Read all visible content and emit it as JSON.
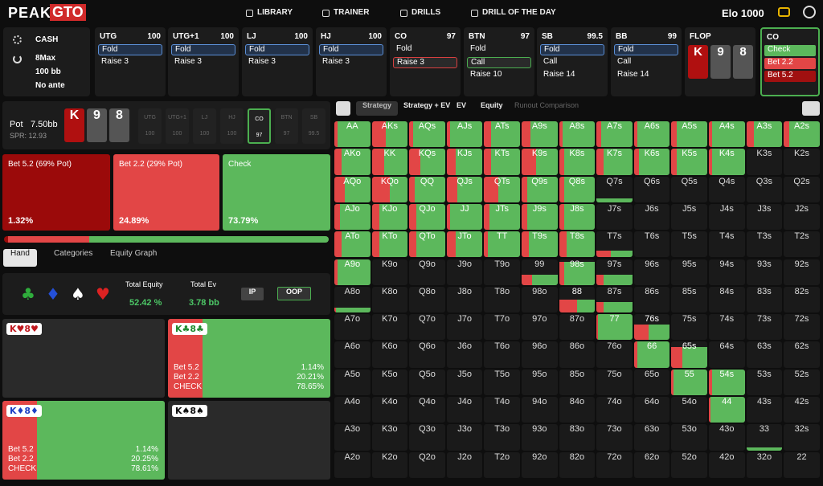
{
  "header": {
    "logo_peak": "PEAK",
    "logo_gto": "GTO",
    "nav": [
      "LIBRARY",
      "TRAINER",
      "DRILLS",
      "DRILL OF THE DAY"
    ],
    "elo": "Elo 1000"
  },
  "settings": [
    "CASH",
    "8Max",
    "100 bb",
    "No ante"
  ],
  "positions": [
    {
      "name": "UTG",
      "stack": "100",
      "actions": [
        "Fold",
        "Raise 3"
      ]
    },
    {
      "name": "UTG+1",
      "stack": "100",
      "actions": [
        "Fold",
        "Raise 3"
      ]
    },
    {
      "name": "LJ",
      "stack": "100",
      "actions": [
        "Fold",
        "Raise 3"
      ]
    },
    {
      "name": "HJ",
      "stack": "100",
      "actions": [
        "Fold",
        "Raise 3"
      ]
    },
    {
      "name": "CO",
      "stack": "97",
      "actions": [
        "Fold",
        "Raise 3"
      ]
    },
    {
      "name": "BTN",
      "stack": "97",
      "actions": [
        "Fold",
        "Call",
        "Raise 10"
      ]
    },
    {
      "name": "SB",
      "stack": "99.5",
      "actions": [
        "Fold",
        "Call",
        "Raise 14"
      ]
    },
    {
      "name": "BB",
      "stack": "99",
      "actions": [
        "Fold",
        "Call",
        "Raise 14"
      ]
    }
  ],
  "flop": {
    "label": "FLOP",
    "cards": [
      "K",
      "9",
      "8"
    ]
  },
  "current": {
    "name": "CO",
    "actions": [
      "Check",
      "Bet 2.2",
      "Bet 5.2"
    ]
  },
  "board": {
    "pot": "Pot",
    "pot_value": "7.50bb",
    "spr": "SPR: 12.93",
    "cards": [
      "K",
      "9",
      "8"
    ],
    "mini_positions": [
      {
        "name": "UTG",
        "stack": "100"
      },
      {
        "name": "UTG+1",
        "stack": "100"
      },
      {
        "name": "LJ",
        "stack": "100"
      },
      {
        "name": "HJ",
        "stack": "100"
      },
      {
        "name": "CO",
        "stack": "97"
      },
      {
        "name": "BTN",
        "stack": "97"
      },
      {
        "name": "SB",
        "stack": "99.5"
      }
    ]
  },
  "actions": [
    {
      "label": "Bet 5.2 (69% Pot)",
      "freq": 1.32,
      "freq_label": "1.32%",
      "color": "#9b0a0a"
    },
    {
      "label": "Bet 2.2 (29% Pot)",
      "freq": 24.89,
      "freq_label": "24.89%",
      "color": "#e24646"
    },
    {
      "label": "Check",
      "freq": 73.79,
      "freq_label": "73.79%",
      "color": "#5cb85c"
    }
  ],
  "tabs": [
    "Hand",
    "Categories",
    "Equity Graph"
  ],
  "equity": {
    "suit_filters": [
      "♣",
      "♦",
      "♠",
      "♥"
    ],
    "total_equity_label": "Total Equity",
    "total_equity": "52.42 %",
    "total_ev_label": "Total Ev",
    "total_ev": "3.78 bb",
    "ip": "IP",
    "oop": "OOP"
  },
  "combos": [
    {
      "hand": "K♥8♥",
      "color": "#c0181e"
    },
    {
      "hand": "K♣8♣",
      "color": "#1f8a2e",
      "lines": [
        {
          "action": "Bet 5.2",
          "freq": 1.14,
          "label": "1.14%"
        },
        {
          "action": "Bet 2.2",
          "freq": 20.21,
          "label": "20.21%"
        },
        {
          "action": "CHECK",
          "freq": 78.65,
          "label": "78.65%"
        }
      ]
    },
    {
      "hand": "K♦8♦",
      "color": "#1d3fc4",
      "lines": [
        {
          "action": "Bet 5.2",
          "freq": 1.14,
          "label": "1.14%"
        },
        {
          "action": "Bet 2.2",
          "freq": 20.25,
          "label": "20.25%"
        },
        {
          "action": "CHECK",
          "freq": 78.61,
          "label": "78.61%"
        }
      ]
    },
    {
      "hand": "K♠8♠",
      "color": "#111111"
    }
  ],
  "grid_toolbar": [
    "Strategy",
    "Strategy + EV",
    "EV",
    "Equity",
    "Runout Comparison"
  ],
  "grid": {
    "hands": [
      [
        "AA",
        "AKs",
        "AQs",
        "AJs",
        "ATs",
        "A9s",
        "A8s",
        "A7s",
        "A6s",
        "A5s",
        "A4s",
        "A3s",
        "A2s"
      ],
      [
        "AKo",
        "KK",
        "KQs",
        "KJs",
        "KTs",
        "K9s",
        "K8s",
        "K7s",
        "K6s",
        "K5s",
        "K4s",
        "K3s",
        "K2s"
      ],
      [
        "AQo",
        "KQo",
        "QQ",
        "QJs",
        "QTs",
        "Q9s",
        "Q8s",
        "Q7s",
        "Q6s",
        "Q5s",
        "Q4s",
        "Q3s",
        "Q2s"
      ],
      [
        "AJo",
        "KJo",
        "QJo",
        "JJ",
        "JTs",
        "J9s",
        "J8s",
        "J7s",
        "J6s",
        "J5s",
        "J4s",
        "J3s",
        "J2s"
      ],
      [
        "ATo",
        "KTo",
        "QTo",
        "JTo",
        "TT",
        "T9s",
        "T8s",
        "T7s",
        "T6s",
        "T5s",
        "T4s",
        "T3s",
        "T2s"
      ],
      [
        "A9o",
        "K9o",
        "Q9o",
        "J9o",
        "T9o",
        "99",
        "98s",
        "97s",
        "96s",
        "95s",
        "94s",
        "93s",
        "92s"
      ],
      [
        "A8o",
        "K8o",
        "Q8o",
        "J8o",
        "T8o",
        "98o",
        "88",
        "87s",
        "86s",
        "85s",
        "84s",
        "83s",
        "82s"
      ],
      [
        "A7o",
        "K7o",
        "Q7o",
        "J7o",
        "T7o",
        "97o",
        "87o",
        "77",
        "76s",
        "75s",
        "74s",
        "73s",
        "72s"
      ],
      [
        "A6o",
        "K6o",
        "Q6o",
        "J6o",
        "T6o",
        "96o",
        "86o",
        "76o",
        "66",
        "65s",
        "64s",
        "63s",
        "62s"
      ],
      [
        "A5o",
        "K5o",
        "Q5o",
        "J5o",
        "T5o",
        "95o",
        "85o",
        "75o",
        "65o",
        "55",
        "54s",
        "53s",
        "52s"
      ],
      [
        "A4o",
        "K4o",
        "Q4o",
        "J4o",
        "T4o",
        "94o",
        "84o",
        "74o",
        "64o",
        "54o",
        "44",
        "43s",
        "42s"
      ],
      [
        "A3o",
        "K3o",
        "Q3o",
        "J3o",
        "T3o",
        "93o",
        "83o",
        "73o",
        "63o",
        "53o",
        "43o",
        "33",
        "32s"
      ],
      [
        "A2o",
        "K2o",
        "Q2o",
        "J2o",
        "T2o",
        "92o",
        "82o",
        "72o",
        "62o",
        "52o",
        "42o",
        "32o",
        "22"
      ]
    ],
    "weight": [
      [
        100,
        100,
        100,
        100,
        100,
        100,
        100,
        100,
        100,
        100,
        100,
        100,
        100
      ],
      [
        100,
        100,
        100,
        100,
        100,
        100,
        100,
        100,
        100,
        100,
        100,
        0,
        0
      ],
      [
        100,
        100,
        100,
        100,
        100,
        100,
        100,
        15,
        0,
        0,
        0,
        0,
        0
      ],
      [
        100,
        100,
        100,
        100,
        100,
        100,
        100,
        0,
        0,
        0,
        0,
        0,
        0
      ],
      [
        100,
        100,
        100,
        100,
        100,
        100,
        100,
        25,
        0,
        0,
        0,
        0,
        0
      ],
      [
        100,
        0,
        0,
        0,
        0,
        40,
        90,
        40,
        0,
        0,
        0,
        0,
        0
      ],
      [
        20,
        0,
        0,
        0,
        0,
        0,
        50,
        40,
        0,
        0,
        0,
        0,
        0
      ],
      [
        0,
        0,
        0,
        0,
        0,
        0,
        0,
        100,
        60,
        0,
        0,
        0,
        0
      ],
      [
        0,
        0,
        0,
        0,
        0,
        0,
        0,
        0,
        100,
        80,
        0,
        0,
        0
      ],
      [
        0,
        0,
        0,
        0,
        0,
        0,
        0,
        0,
        0,
        100,
        100,
        0,
        0
      ],
      [
        0,
        0,
        0,
        0,
        0,
        0,
        0,
        0,
        0,
        0,
        100,
        0,
        0
      ],
      [
        0,
        0,
        0,
        0,
        0,
        0,
        0,
        0,
        0,
        0,
        0,
        10,
        0
      ],
      [
        0,
        0,
        0,
        0,
        0,
        0,
        0,
        0,
        0,
        0,
        0,
        0,
        0
      ]
    ],
    "bet": [
      [
        10,
        40,
        10,
        10,
        20,
        25,
        10,
        12,
        10,
        15,
        10,
        20,
        15
      ],
      [
        20,
        35,
        30,
        25,
        20,
        40,
        15,
        20,
        15,
        15,
        10,
        null,
        null
      ],
      [
        30,
        50,
        15,
        30,
        40,
        15,
        15,
        0,
        null,
        null,
        null,
        null,
        null
      ],
      [
        15,
        20,
        20,
        10,
        15,
        15,
        15,
        null,
        null,
        null,
        null,
        null,
        null
      ],
      [
        20,
        20,
        20,
        25,
        10,
        20,
        20,
        40,
        null,
        null,
        null,
        null,
        null
      ],
      [
        10,
        null,
        null,
        null,
        null,
        30,
        15,
        20,
        null,
        null,
        null,
        null,
        null
      ],
      [
        5,
        null,
        null,
        null,
        null,
        null,
        50,
        20,
        null,
        null,
        null,
        null,
        null
      ],
      [
        null,
        null,
        null,
        null,
        null,
        null,
        null,
        5,
        40,
        null,
        null,
        null,
        null
      ],
      [
        null,
        null,
        null,
        null,
        null,
        null,
        null,
        null,
        10,
        30,
        null,
        null,
        null
      ],
      [
        null,
        null,
        null,
        null,
        null,
        null,
        null,
        null,
        null,
        5,
        10,
        null,
        null
      ],
      [
        null,
        null,
        null,
        null,
        null,
        null,
        null,
        null,
        null,
        null,
        5,
        null,
        null
      ],
      [
        null,
        null,
        null,
        null,
        null,
        null,
        null,
        null,
        null,
        null,
        null,
        0,
        null
      ],
      [
        null,
        null,
        null,
        null,
        null,
        null,
        null,
        null,
        null,
        null,
        null,
        null,
        null
      ]
    ],
    "check": [
      [
        90,
        60,
        90,
        90,
        80,
        75,
        90,
        88,
        90,
        85,
        90,
        80,
        85
      ],
      [
        80,
        65,
        70,
        75,
        80,
        60,
        85,
        80,
        85,
        85,
        90,
        null,
        null
      ],
      [
        70,
        50,
        85,
        70,
        60,
        85,
        85,
        100,
        null,
        null,
        null,
        null,
        null
      ],
      [
        85,
        80,
        80,
        90,
        85,
        85,
        85,
        null,
        null,
        null,
        null,
        null,
        null
      ],
      [
        80,
        80,
        80,
        75,
        90,
        80,
        80,
        60,
        null,
        null,
        null,
        null,
        null
      ],
      [
        90,
        null,
        null,
        null,
        null,
        70,
        85,
        80,
        null,
        null,
        null,
        null,
        null
      ],
      [
        95,
        null,
        null,
        null,
        null,
        null,
        50,
        80,
        null,
        null,
        null,
        null,
        null
      ],
      [
        null,
        null,
        null,
        null,
        null,
        null,
        null,
        95,
        60,
        null,
        null,
        null,
        null
      ],
      [
        null,
        null,
        null,
        null,
        null,
        null,
        null,
        null,
        90,
        70,
        null,
        null,
        null
      ],
      [
        null,
        null,
        null,
        null,
        null,
        null,
        null,
        null,
        null,
        95,
        90,
        null,
        null
      ],
      [
        null,
        null,
        null,
        null,
        null,
        null,
        null,
        null,
        null,
        null,
        95,
        null,
        null
      ],
      [
        null,
        null,
        null,
        null,
        null,
        null,
        null,
        null,
        null,
        null,
        null,
        100,
        null
      ],
      [
        null,
        null,
        null,
        null,
        null,
        null,
        null,
        null,
        null,
        null,
        null,
        null,
        null
      ]
    ]
  }
}
